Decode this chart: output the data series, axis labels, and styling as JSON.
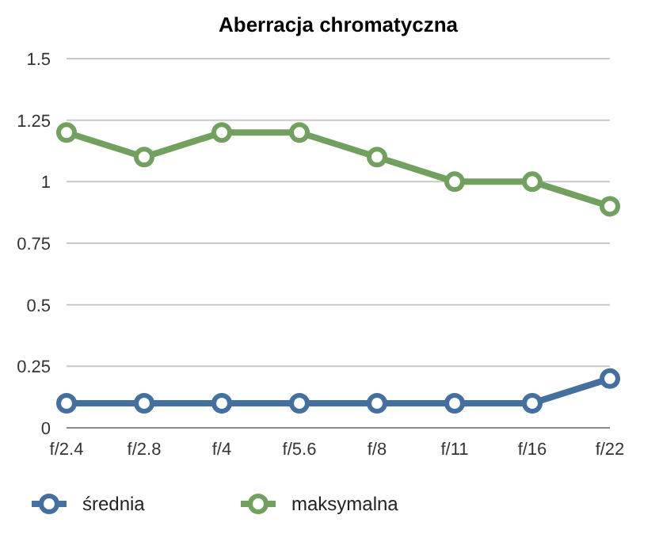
{
  "chart_data": {
    "type": "line",
    "title": "Aberracja chromatyczna",
    "categories": [
      "f/2.4",
      "f/2.8",
      "f/4",
      "f/5.6",
      "f/8",
      "f/11",
      "f/16",
      "f/22"
    ],
    "series": [
      {
        "name": "średnia",
        "color": "#43709e",
        "values": [
          0.1,
          0.1,
          0.1,
          0.1,
          0.1,
          0.1,
          0.1,
          0.2
        ]
      },
      {
        "name": "maksymalna",
        "color": "#72a05f",
        "values": [
          1.2,
          1.1,
          1.2,
          1.2,
          1.1,
          1.0,
          1.0,
          0.9
        ]
      }
    ],
    "ylim": [
      0,
      1.5
    ],
    "yticks": [
      0,
      0.25,
      0.5,
      0.75,
      1,
      1.25,
      1.5
    ],
    "grid": "y",
    "legend": "bottom",
    "marker": "circle",
    "line_style": "solid"
  }
}
